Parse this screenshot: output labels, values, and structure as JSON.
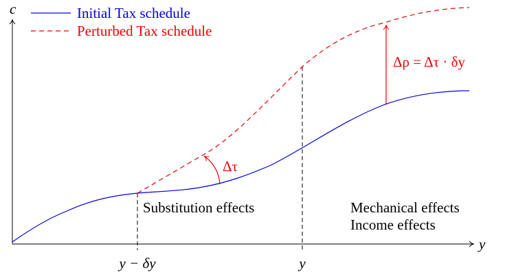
{
  "legend": {
    "initial": "Initial Tax schedule",
    "perturbed": "Perturbed Tax schedule"
  },
  "axes": {
    "y_axis": "c",
    "x_axis": "y"
  },
  "ticks": {
    "left": "y − δy",
    "right": "y"
  },
  "annotations": {
    "angle": "Δτ",
    "gap": "Δρ = Δτ · δy",
    "substitution": "Substitution effects",
    "mechanical": "Mechanical effects",
    "income": "Income effects"
  }
}
